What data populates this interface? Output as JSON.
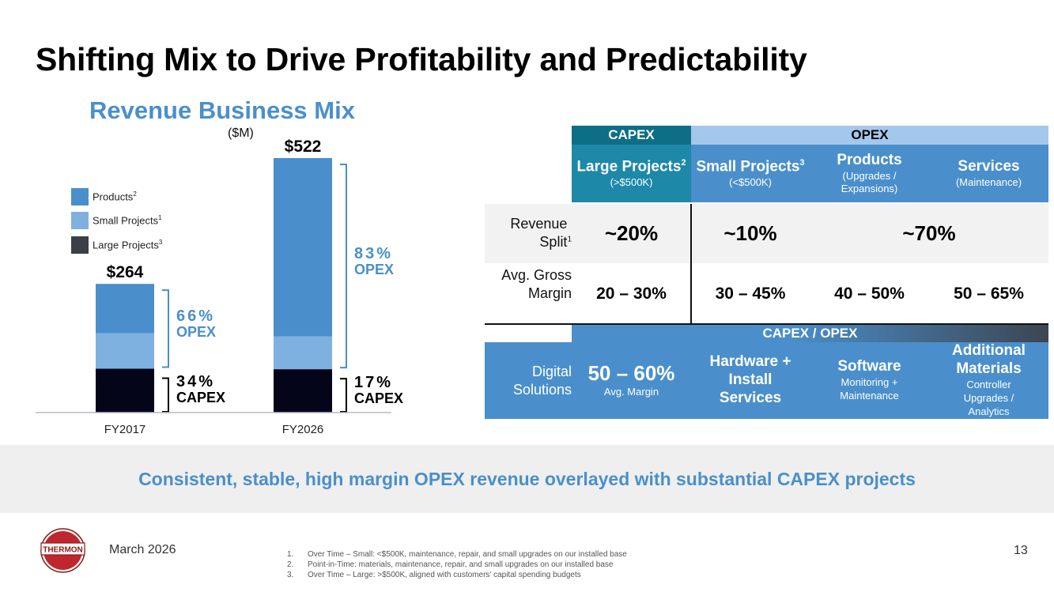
{
  "title": "Shifting Mix to Drive Profitability and Predictability",
  "chart": {
    "heading": "Revenue Business Mix",
    "unit": "($M)"
  },
  "chart_data": {
    "type": "bar",
    "stacked": true,
    "title": "Revenue Business Mix",
    "ylabel": "($M)",
    "categories": [
      "FY2017",
      "FY2026"
    ],
    "totals": [
      "$264",
      "$522"
    ],
    "total_values": [
      264,
      522
    ],
    "ylim": [
      0,
      522
    ],
    "series": [
      {
        "name": "Large Projects",
        "sup": "3",
        "color": "#05051a",
        "values": [
          90,
          89
        ]
      },
      {
        "name": "Small Projects",
        "sup": "1",
        "color": "#7fb1e0",
        "values": [
          73,
          67
        ]
      },
      {
        "name": "Products",
        "sup": "2",
        "color": "#4a8fcb",
        "values": [
          101,
          366
        ]
      }
    ],
    "legend": [
      {
        "name": "Products",
        "sup": "2",
        "color": "#4a8fcb"
      },
      {
        "name": "Small Projects",
        "sup": "1",
        "color": "#7fb1e0"
      },
      {
        "name": "Large Projects",
        "sup": "3",
        "color": "#3a3f48"
      }
    ],
    "brackets": [
      {
        "category": "FY2017",
        "opex_pct": "66%",
        "opex_label": "OPEX",
        "capex_pct": "34%",
        "capex_label": "CAPEX"
      },
      {
        "category": "FY2026",
        "opex_pct": "83%",
        "opex_label": "OPEX",
        "capex_pct": "17%",
        "capex_label": "CAPEX"
      }
    ],
    "grid": false
  },
  "table": {
    "header": {
      "capex": "CAPEX",
      "opex": "OPEX"
    },
    "columns": [
      {
        "main": "Large Projects",
        "sup": "2",
        "sub": "(>$500K)"
      },
      {
        "main": "Small Projects",
        "sup": "3",
        "sub": "(<$500K)"
      },
      {
        "main": "Products",
        "sup": "",
        "sub": "(Upgrades / Expansions)"
      },
      {
        "main": "Services",
        "sup": "",
        "sub": "(Maintenance)"
      }
    ],
    "revenue_split": {
      "label": "Revenue Split",
      "sup": "1",
      "values": [
        "~20%",
        "~10%",
        "~70%"
      ]
    },
    "gross_margin": {
      "label": "Avg. Gross Margin",
      "values": [
        "20 – 30%",
        "30 – 45%",
        "40 – 50%",
        "50 – 65%"
      ]
    },
    "capex_opex_header": "CAPEX / OPEX",
    "digital": {
      "label": "Digital Solutions",
      "margin_value": "50 – 60%",
      "margin_sub": "Avg. Margin",
      "items": [
        {
          "main": "Hardware + Install Services",
          "sub": ""
        },
        {
          "main": "Software",
          "sub": "Monitoring + Maintenance"
        },
        {
          "main": "Additional Materials",
          "sub": "Controller Upgrades / Analytics"
        }
      ]
    }
  },
  "banner": "Consistent, stable, high margin OPEX revenue overlayed with substantial CAPEX projects",
  "footer": {
    "logo_text": "THERMON",
    "date": "March 2026",
    "page_number": "13",
    "footnotes": [
      {
        "num": "1.",
        "text": "Over Time – Small: <$500K, maintenance, repair, and small upgrades on our installed base"
      },
      {
        "num": "2.",
        "text": "Point-in-Time: materials, maintenance, repair, and small upgrades on our installed base"
      },
      {
        "num": "3.",
        "text": "Over Time – Large: >$500K, aligned with customers' capital spending budgets"
      }
    ]
  },
  "colors": {
    "accent_blue": "#4a8fcb",
    "capex_teal": "#0e6e85",
    "opex_light": "#a4c8ec",
    "banner_bg": "#efefef"
  }
}
